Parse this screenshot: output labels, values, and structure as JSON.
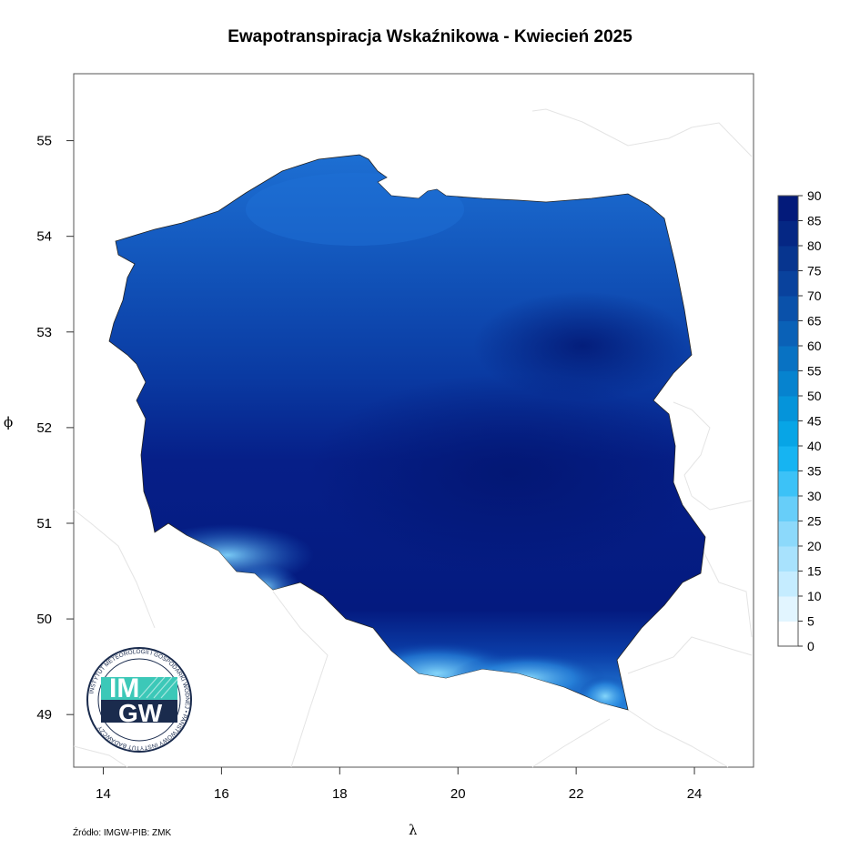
{
  "title": "Ewapotranspiracja Wskaźnikowa - Kwiecień 2025",
  "source": "Źródło: IMGW-PIB: ZMK",
  "axes": {
    "xlabel": "λ",
    "ylabel": "ϕ",
    "xlim": [
      13.5,
      25.0
    ],
    "ylim": [
      48.45,
      55.7
    ],
    "x_ticks": [
      "14",
      "16",
      "18",
      "20",
      "22",
      "24"
    ],
    "y_ticks": [
      "49",
      "50",
      "51",
      "52",
      "53",
      "54",
      "55"
    ]
  },
  "legend": {
    "placement": "right",
    "labels": [
      "0",
      "5",
      "10",
      "15",
      "20",
      "25",
      "30",
      "35",
      "40",
      "45",
      "50",
      "55",
      "60",
      "65",
      "70",
      "75",
      "80",
      "85",
      "90"
    ],
    "colors": [
      "#ffffff",
      "#e2f5ff",
      "#c5ecff",
      "#a8e2fd",
      "#8cd9fb",
      "#67cef9",
      "#3cc2f7",
      "#16b4f2",
      "#07a5e6",
      "#0594da",
      "#0683cf",
      "#0872c3",
      "#0a61b7",
      "#0a51aa",
      "#09429d",
      "#07358f",
      "#052784",
      "#031a7a"
    ]
  },
  "chart_data": {
    "type": "heatmap",
    "title": "Ewapotranspiracja Wskaźnikowa - Kwiecień 2025",
    "xlabel": "λ",
    "ylabel": "ϕ",
    "xlim": [
      13.5,
      25.0
    ],
    "ylim": [
      48.45,
      55.7
    ],
    "grid": false,
    "legend_placement": "right",
    "value_range": [
      0,
      90
    ],
    "color_breaks": [
      0,
      5,
      10,
      15,
      20,
      25,
      30,
      35,
      40,
      45,
      50,
      55,
      60,
      65,
      70,
      75,
      80,
      85,
      90
    ]
  },
  "logo": {
    "text_top": "IM",
    "text_bottom": "GW",
    "ring_text": "INSTYTUT METEOROLOGII I GOSPODARKI WODNEJ • PAŃSTWOWY INSTYTUT BADAWCZY",
    "teal": "#3cc8b8",
    "navy": "#1a2b4d"
  },
  "colors": {
    "land_dark": "#031a7a",
    "land_mid": "#0a3fa8",
    "land_north": "#1560c5",
    "mountains_light": "#38b8f0",
    "border_lines": "#e6e6e6"
  }
}
